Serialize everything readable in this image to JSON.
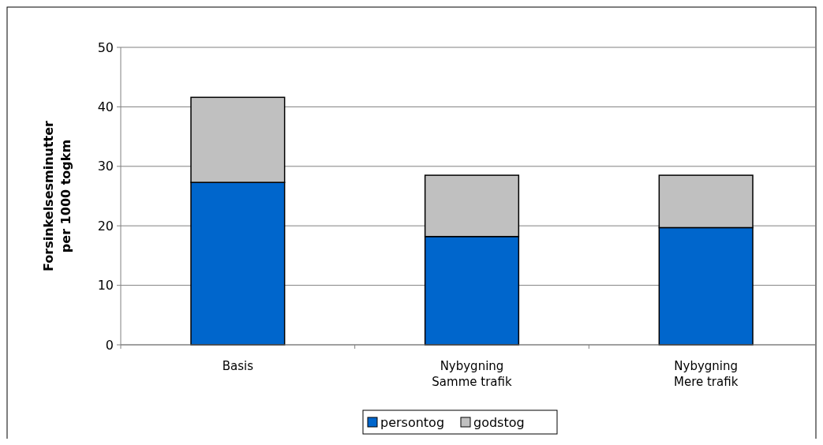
{
  "chart_data": {
    "type": "bar",
    "stacked": true,
    "ylabel": "Forsinkelsesminutter\nper 1000 togkm",
    "categories": [
      "Basis",
      "Nybygning\nSamme trafik",
      "Nybygning\nMere trafik"
    ],
    "series": [
      {
        "name": "persontog",
        "color": "#0066cc",
        "values": [
          27.3,
          18.2,
          19.7
        ]
      },
      {
        "name": "godstog",
        "color": "#c0c0c0",
        "values": [
          14.3,
          10.3,
          8.8
        ]
      }
    ],
    "ylim": [
      0,
      50
    ],
    "yticks": [
      0,
      10,
      20,
      30,
      40,
      50
    ],
    "grid": "y",
    "legend": "bottom"
  }
}
